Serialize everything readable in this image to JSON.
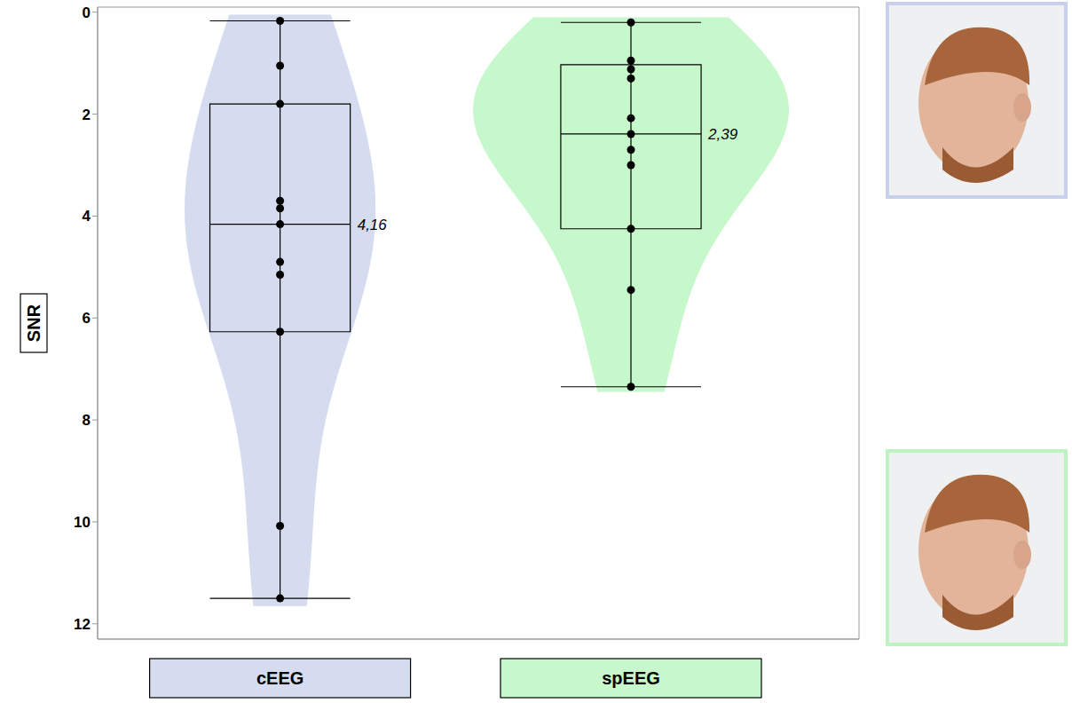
{
  "chart_data": {
    "type": "violin",
    "y_label": "SNR",
    "ylim": [
      -0.1,
      12.3
    ],
    "yticks": [
      0,
      2,
      4,
      6,
      8,
      10,
      12
    ],
    "series": [
      {
        "name": "cEEG",
        "color": "#d5dcef",
        "values": [
          11.5,
          10.08,
          6.27,
          5.15,
          4.9,
          4.16,
          3.85,
          3.7,
          1.8,
          1.05,
          0.17
        ],
        "box": {
          "whisker_low": 0.17,
          "q1": 1.8,
          "median": 4.16,
          "q3": 6.27,
          "whisker_high": 11.5,
          "median_label": "4,16"
        }
      },
      {
        "name": "spEEG",
        "color": "#c6f8cb",
        "values": [
          7.35,
          5.45,
          4.25,
          3.0,
          2.7,
          2.39,
          2.08,
          1.3,
          1.12,
          0.95,
          0.2
        ],
        "box": {
          "whisker_low": 0.2,
          "q1": 1.03,
          "median": 2.39,
          "q3": 4.25,
          "whisker_high": 7.35,
          "median_label": "2,39"
        }
      }
    ]
  }
}
